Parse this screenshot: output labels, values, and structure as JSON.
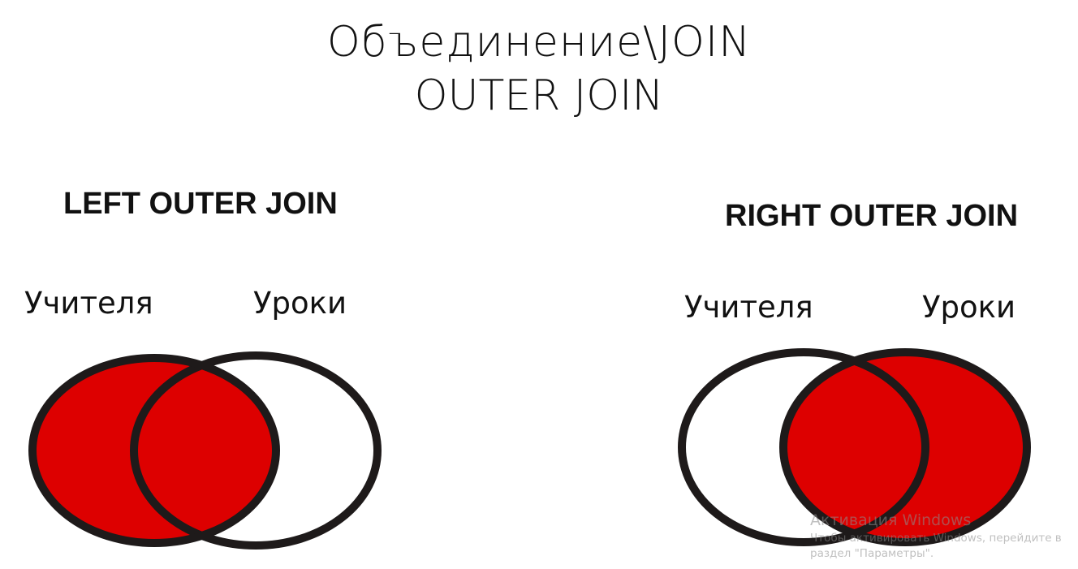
{
  "slide": {
    "title_line1": "Объединение\\JOIN",
    "title_line2": "OUTER JOIN"
  },
  "left_diagram": {
    "heading": "LEFT OUTER JOIN",
    "set_a_label": "Учителя",
    "set_b_label": "Уроки",
    "highlighted": "left"
  },
  "right_diagram": {
    "heading": "RIGHT OUTER JOIN",
    "set_a_label": "Учителя",
    "set_b_label": "Уроки",
    "highlighted": "right"
  },
  "colors": {
    "fill": "#dd0000",
    "outline": "#1e1a1a",
    "background": "#ffffff"
  },
  "watermark": {
    "title": "Активация Windows",
    "line1": "Чтобы активировать Windows, перейдите в",
    "line2": "раздел \"Параметры\"."
  }
}
